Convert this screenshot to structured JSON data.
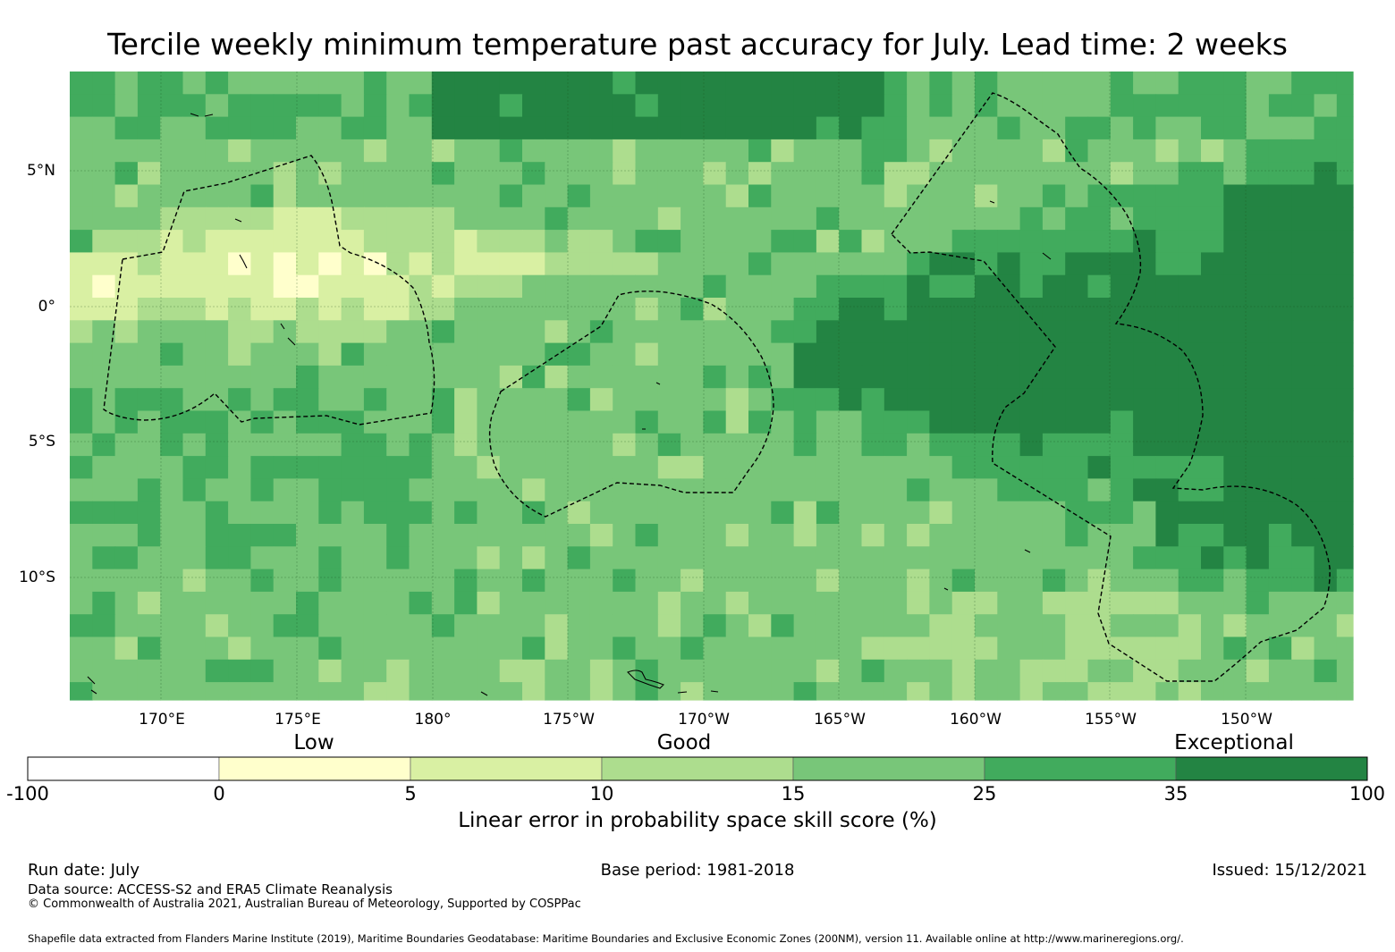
{
  "title": "Tercile weekly minimum temperature past accuracy for July. Lead time: 2 weeks",
  "map": {
    "type": "map",
    "variable": "Linear error in probability space skill score (%)",
    "lon_range": [
      "166.5°E",
      "146.5°W"
    ],
    "lat_range": [
      "8.5°N",
      "14.5°S"
    ],
    "lon_ticks": [
      "170°E",
      "175°E",
      "180°",
      "175°W",
      "170°W",
      "165°W",
      "160°W",
      "155°W",
      "150°W"
    ],
    "lat_ticks": [
      "5°N",
      "0°",
      "5°S",
      "10°S"
    ],
    "gridlines": true,
    "eez_outlines": "dashed black",
    "regions": [
      {
        "area": "west, near equator",
        "skill_category": "0-5 / 5-10"
      },
      {
        "area": "central",
        "skill_category": "15-25"
      },
      {
        "area": "east, near equator",
        "skill_category": "35-100"
      }
    ]
  },
  "colorbar": {
    "categories": [
      "Low",
      "Good",
      "Exceptional"
    ],
    "bounds": [
      "-100",
      "0",
      "5",
      "10",
      "15",
      "25",
      "35",
      "100"
    ],
    "colors": [
      "#ffffff",
      "#ffffcc",
      "#d9f0a3",
      "#addd8e",
      "#78c679",
      "#41ab5d",
      "#238443"
    ],
    "label": "Linear error in probability space skill score (%)"
  },
  "footer": {
    "run_date": "Run date: July",
    "base_period": "Base period: 1981-2018",
    "issued": "Issued: 15/12/2021",
    "data_source": "Data source: ACCESS-S2 and ERA5 Climate Reanalysis",
    "copyright": "© Commonwealth of Australia 2021, Australian Bureau of Meteorology, Supported by COSPPac",
    "shapefile": "Shapefile data extracted from Flanders Marine Institute (2019), Maritime Boundaries Geodatabase: Maritime Boundaries and Exclusive Economic Zones (200NM), version 11. Available online at http://www.marineregions.org/."
  }
}
